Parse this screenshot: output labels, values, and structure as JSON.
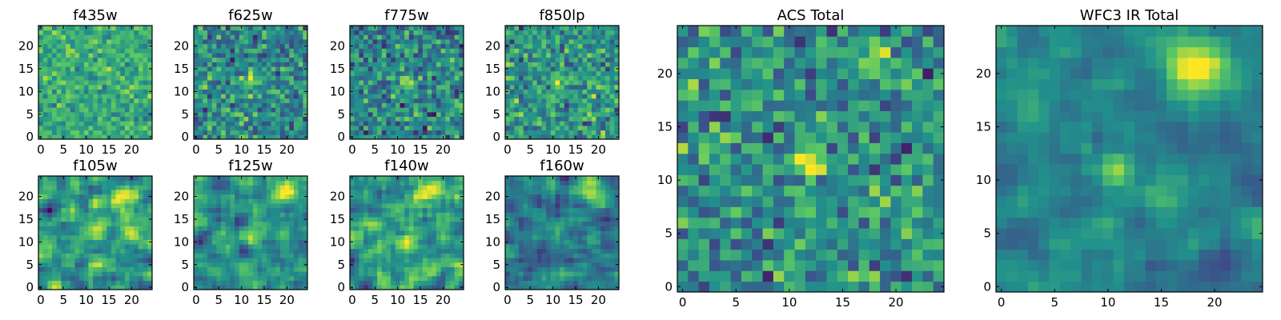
{
  "figure": {
    "description_colormap": "viridis",
    "colormap": [
      "#440154",
      "#3b528b",
      "#21918c",
      "#5ec962",
      "#fde725"
    ]
  },
  "chart_data": [
    {
      "type": "heatmap",
      "title": "f435w",
      "grid_size": 25,
      "xlim": [
        0,
        24
      ],
      "ylim": [
        0,
        24
      ],
      "xticks": [
        "0",
        "5",
        "10",
        "15",
        "20"
      ],
      "yticks": [
        "0",
        "5",
        "10",
        "15",
        "20"
      ],
      "seed": 11,
      "noise_scale": 0.15,
      "base": 0.62,
      "smooth": 0,
      "sources": []
    },
    {
      "type": "heatmap",
      "title": "f625w",
      "grid_size": 25,
      "xlim": [
        0,
        24
      ],
      "ylim": [
        0,
        24
      ],
      "xticks": [
        "0",
        "5",
        "10",
        "15",
        "20"
      ],
      "yticks": [
        "0",
        "5",
        "10",
        "15",
        "20"
      ],
      "seed": 23,
      "noise_scale": 0.22,
      "base": 0.48,
      "smooth": 0,
      "sources": [
        {
          "x": 12,
          "y": 12,
          "amp": 0.5,
          "sigma": 1.0
        }
      ]
    },
    {
      "type": "heatmap",
      "title": "f775w",
      "grid_size": 25,
      "xlim": [
        0,
        24
      ],
      "ylim": [
        0,
        24
      ],
      "xticks": [
        "0",
        "5",
        "10",
        "15",
        "20"
      ],
      "yticks": [
        "0",
        "5",
        "10",
        "15",
        "20"
      ],
      "seed": 37,
      "noise_scale": 0.22,
      "base": 0.46,
      "smooth": 0,
      "sources": [
        {
          "x": 12,
          "y": 12,
          "amp": 0.55,
          "sigma": 1.0
        }
      ]
    },
    {
      "type": "heatmap",
      "title": "f850lp",
      "grid_size": 25,
      "xlim": [
        0,
        24
      ],
      "ylim": [
        0,
        24
      ],
      "xticks": [
        "0",
        "5",
        "10",
        "15",
        "20"
      ],
      "yticks": [
        "0",
        "5",
        "10",
        "15",
        "20"
      ],
      "seed": 41,
      "noise_scale": 0.22,
      "base": 0.52,
      "smooth": 0,
      "sources": [
        {
          "x": 12,
          "y": 12,
          "amp": 0.35,
          "sigma": 1.2
        }
      ]
    },
    {
      "type": "heatmap",
      "title": "f105w",
      "grid_size": 25,
      "xlim": [
        0,
        24
      ],
      "ylim": [
        0,
        24
      ],
      "xticks": [
        "0",
        "5",
        "10",
        "15",
        "20"
      ],
      "yticks": [
        "0",
        "5",
        "10",
        "15",
        "20"
      ],
      "seed": 53,
      "noise_scale": 0.3,
      "base": 0.55,
      "smooth": 1,
      "sources": [
        {
          "x": 20,
          "y": 20,
          "amp": 0.4,
          "sigma": 2.0
        },
        {
          "x": 12,
          "y": 12,
          "amp": 0.35,
          "sigma": 1.2
        }
      ]
    },
    {
      "type": "heatmap",
      "title": "f125w",
      "grid_size": 25,
      "xlim": [
        0,
        24
      ],
      "ylim": [
        0,
        24
      ],
      "xticks": [
        "0",
        "5",
        "10",
        "15",
        "20"
      ],
      "yticks": [
        "0",
        "5",
        "10",
        "15",
        "20"
      ],
      "seed": 67,
      "noise_scale": 0.26,
      "base": 0.5,
      "smooth": 1,
      "sources": [
        {
          "x": 19,
          "y": 21,
          "amp": 0.45,
          "sigma": 1.8
        },
        {
          "x": 12,
          "y": 11,
          "amp": 0.3,
          "sigma": 1.2
        }
      ]
    },
    {
      "type": "heatmap",
      "title": "f140w",
      "grid_size": 25,
      "xlim": [
        0,
        24
      ],
      "ylim": [
        0,
        24
      ],
      "xticks": [
        "0",
        "5",
        "10",
        "15",
        "20"
      ],
      "yticks": [
        "0",
        "5",
        "10",
        "15",
        "20"
      ],
      "seed": 79,
      "noise_scale": 0.3,
      "base": 0.56,
      "smooth": 1,
      "sources": [
        {
          "x": 19,
          "y": 21,
          "amp": 0.4,
          "sigma": 1.8
        },
        {
          "x": 12,
          "y": 10,
          "amp": 0.35,
          "sigma": 1.3
        }
      ]
    },
    {
      "type": "heatmap",
      "title": "f160w",
      "grid_size": 25,
      "xlim": [
        0,
        24
      ],
      "ylim": [
        0,
        24
      ],
      "xticks": [
        "0",
        "5",
        "10",
        "15",
        "20"
      ],
      "yticks": [
        "0",
        "5",
        "10",
        "15",
        "20"
      ],
      "seed": 97,
      "noise_scale": 0.24,
      "base": 0.42,
      "smooth": 1,
      "sources": [
        {
          "x": 18,
          "y": 21,
          "amp": 0.55,
          "sigma": 1.8
        },
        {
          "x": 11,
          "y": 11,
          "amp": 0.3,
          "sigma": 1.2
        }
      ]
    },
    {
      "type": "heatmap",
      "title": "ACS Total",
      "grid_size": 25,
      "xlim": [
        0,
        24
      ],
      "ylim": [
        0,
        24
      ],
      "xticks": [
        "0",
        "5",
        "10",
        "15",
        "20"
      ],
      "yticks": [
        "0",
        "5",
        "10",
        "15",
        "20"
      ],
      "seed": 131,
      "noise_scale": 0.22,
      "base": 0.5,
      "smooth": 0,
      "sources": [
        {
          "x": 12,
          "y": 12,
          "amp": 0.65,
          "sigma": 1.0
        },
        {
          "x": 18,
          "y": 21,
          "amp": 0.3,
          "sigma": 1.5
        }
      ]
    },
    {
      "type": "heatmap",
      "title": "WFC3 IR Total",
      "grid_size": 25,
      "xlim": [
        0,
        24
      ],
      "ylim": [
        0,
        24
      ],
      "xticks": [
        "0",
        "5",
        "10",
        "15",
        "20"
      ],
      "yticks": [
        "0",
        "5",
        "10",
        "15",
        "20"
      ],
      "seed": 173,
      "noise_scale": 0.16,
      "base": 0.42,
      "smooth": 1,
      "sources": [
        {
          "x": 18,
          "y": 21,
          "amp": 0.7,
          "sigma": 2.0
        },
        {
          "x": 11,
          "y": 11,
          "amp": 0.45,
          "sigma": 1.1
        }
      ]
    }
  ]
}
